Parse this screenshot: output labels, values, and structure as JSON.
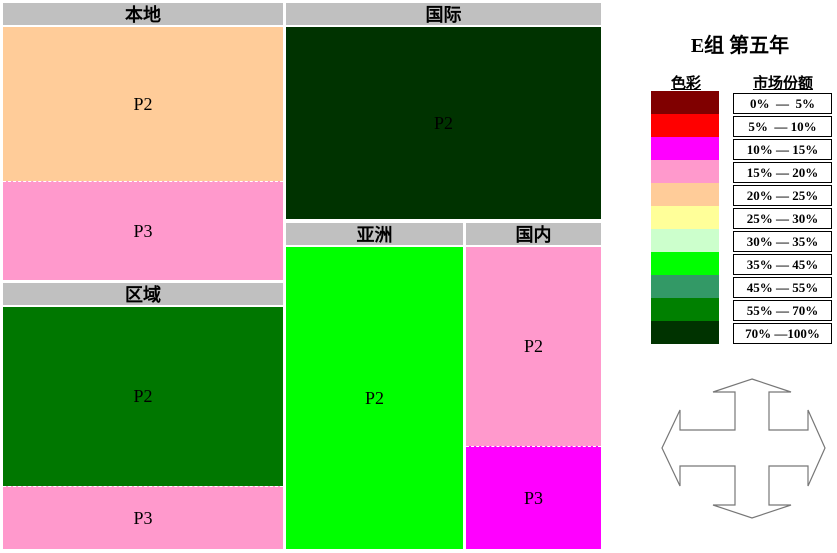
{
  "title": "E组 第五年",
  "panels": [
    {
      "title": "本地",
      "cells": [
        {
          "label": "P2",
          "color": "#ffcc99"
        },
        {
          "label": "P3",
          "color": "#ff99cc"
        }
      ]
    },
    {
      "title": "区域",
      "cells": [
        {
          "label": "P2",
          "color": "#007700"
        },
        {
          "label": "P3",
          "color": "#ff99cc"
        }
      ]
    },
    {
      "title": "国际",
      "cells": [
        {
          "label": "P2",
          "color": "#003300"
        }
      ]
    },
    {
      "title": "亚洲",
      "cells": [
        {
          "label": "P2",
          "color": "#00ff00"
        }
      ]
    },
    {
      "title": "国内",
      "cells": [
        {
          "label": "P2",
          "color": "#ff99cc"
        },
        {
          "label": "P3",
          "color": "#ff00ff"
        }
      ]
    }
  ],
  "legend": {
    "color_header": "色彩",
    "share_header": "市场份额",
    "items": [
      {
        "color": "#800000",
        "range": "0%  —  5%"
      },
      {
        "color": "#ff0000",
        "range": "5%  — 10%"
      },
      {
        "color": "#ff00ff",
        "range": "10% — 15%"
      },
      {
        "color": "#ff99cc",
        "range": "15% — 20%"
      },
      {
        "color": "#ffcc99",
        "range": "20% — 25%"
      },
      {
        "color": "#ffff99",
        "range": "25% — 30%"
      },
      {
        "color": "#ccffcc",
        "range": "30% — 35%"
      },
      {
        "color": "#00ff00",
        "range": "35% — 45%"
      },
      {
        "color": "#339966",
        "range": "45% — 55%"
      },
      {
        "color": "#008000",
        "range": "55% — 70%"
      },
      {
        "color": "#003300",
        "range": "70% —100%"
      }
    ]
  }
}
